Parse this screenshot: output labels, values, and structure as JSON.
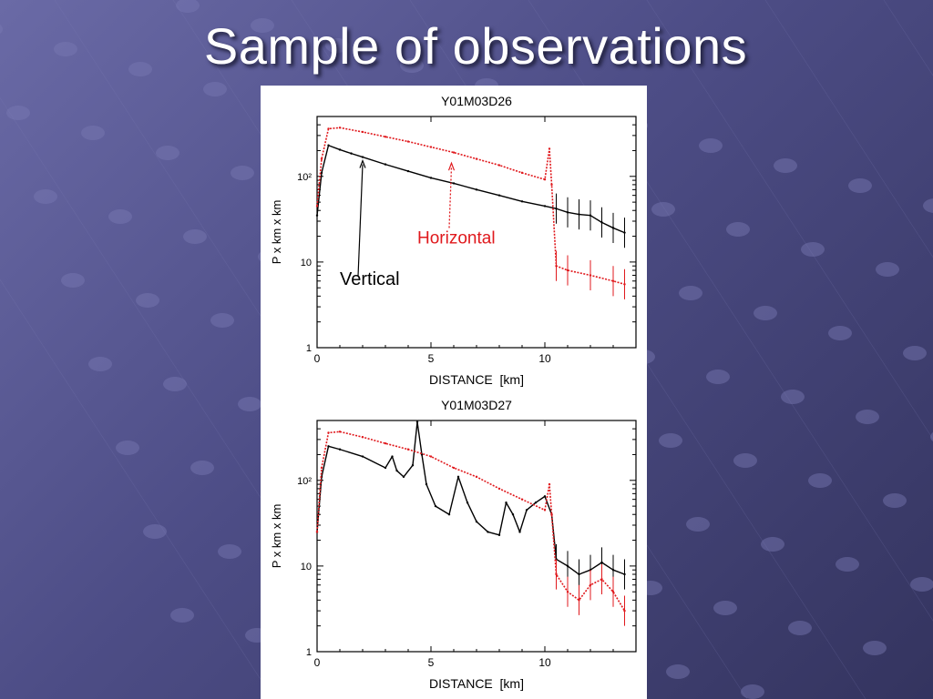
{
  "slide": {
    "title": "Sample of observations"
  },
  "colors": {
    "vertical": "#000000",
    "horizontal": "#e0191d",
    "background": "#55558d",
    "panel": "#ffffff"
  },
  "chart_data": [
    {
      "type": "line",
      "title": "Y01M03D26",
      "xlabel": "DISTANCE  [km]",
      "ylabel": "P x km x km",
      "xlim": [
        0,
        14
      ],
      "ylim": [
        1,
        500
      ],
      "yscale": "log",
      "xticks": [
        "0",
        "5",
        "10"
      ],
      "yticks": [
        "1",
        "10",
        "10²"
      ],
      "grid": false,
      "annotations": [
        "Vertical",
        "Horizontal"
      ],
      "series": [
        {
          "name": "Vertical",
          "color": "#000000",
          "x": [
            0,
            0.2,
            0.5,
            1,
            1.5,
            2,
            3,
            4,
            5,
            6,
            7,
            8,
            9,
            10,
            10.5,
            11,
            11.5,
            12,
            12.5,
            13,
            13.5
          ],
          "y": [
            35,
            110,
            230,
            205,
            185,
            168,
            138,
            115,
            96,
            83,
            70,
            60,
            51,
            45,
            42,
            38,
            36,
            35,
            29,
            25,
            22
          ]
        },
        {
          "name": "Horizontal",
          "color": "#e0191d",
          "x": [
            0,
            0.2,
            0.5,
            1,
            2,
            3,
            4,
            5,
            6,
            7,
            8,
            9,
            10,
            10.2,
            10.3,
            10.5,
            11,
            12,
            13,
            13.5
          ],
          "y": [
            45,
            160,
            360,
            370,
            330,
            290,
            255,
            220,
            190,
            160,
            135,
            110,
            92,
            210,
            80,
            9,
            8,
            7,
            6,
            5.5
          ]
        }
      ]
    },
    {
      "type": "line",
      "title": "Y01M03D27",
      "xlabel": "DISTANCE  [km]",
      "ylabel": "P x km x km",
      "xlim": [
        0,
        14
      ],
      "ylim": [
        1,
        500
      ],
      "yscale": "log",
      "xticks": [
        "0",
        "5",
        "10"
      ],
      "yticks": [
        "1",
        "10",
        "10²"
      ],
      "grid": false,
      "series": [
        {
          "color": "#000000",
          "x": [
            0,
            0.2,
            0.5,
            1,
            2,
            3,
            3.3,
            3.5,
            3.8,
            4.2,
            4.4,
            4.6,
            4.8,
            5.2,
            5.8,
            6.2,
            6.6,
            7,
            7.5,
            8,
            8.3,
            8.6,
            8.9,
            9.2,
            9.6,
            10,
            10.3,
            10.5,
            11,
            11.5,
            12,
            12.5,
            13,
            13.5
          ],
          "y": [
            25,
            110,
            250,
            230,
            190,
            140,
            190,
            130,
            110,
            150,
            480,
            200,
            90,
            50,
            40,
            110,
            55,
            33,
            25,
            23,
            55,
            40,
            25,
            45,
            55,
            65,
            40,
            12,
            10,
            8,
            9,
            11,
            9,
            8
          ]
        },
        {
          "color": "#e0191d",
          "x": [
            0,
            0.2,
            0.5,
            1,
            2,
            3,
            4,
            5,
            6,
            7,
            8,
            9,
            10,
            10.2,
            10.3,
            10.5,
            11,
            11.5,
            12,
            12.5,
            13,
            13.5
          ],
          "y": [
            25,
            140,
            360,
            370,
            320,
            270,
            230,
            190,
            140,
            110,
            80,
            60,
            45,
            90,
            40,
            8,
            5,
            4,
            6,
            7,
            5,
            3
          ]
        }
      ]
    }
  ]
}
